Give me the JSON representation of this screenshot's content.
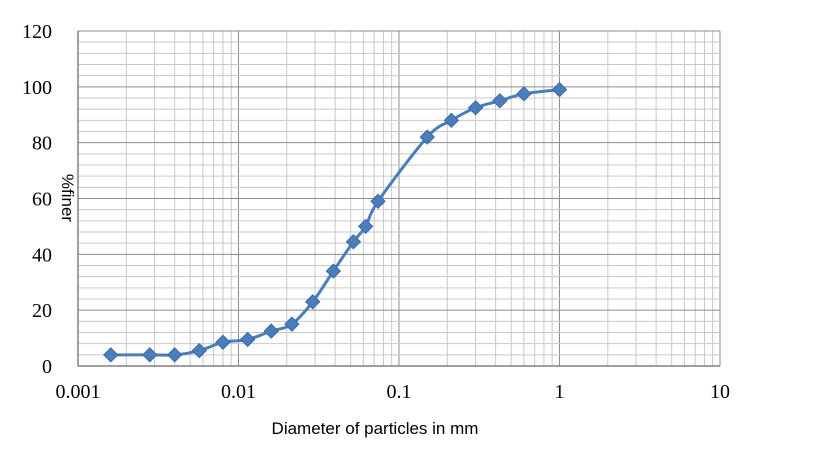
{
  "chart_data": {
    "type": "scatter",
    "title": "",
    "xlabel": "Diameter of particles in mm",
    "ylabel": "%finer",
    "x_scale": "log",
    "xlim": [
      0.001,
      10
    ],
    "ylim": [
      0,
      120
    ],
    "x_ticks": [
      "0.001",
      "0.01",
      "0.1",
      "1",
      "10"
    ],
    "y_ticks": [
      "0",
      "20",
      "40",
      "60",
      "80",
      "100",
      "120"
    ],
    "grid": "on (major and minor, log x)",
    "legend": "none",
    "series_color": "#4a7ebb",
    "series": [
      {
        "marker": "diamond",
        "line": "smooth",
        "points": [
          {
            "x": 0.0016,
            "y": 4
          },
          {
            "x": 0.0028,
            "y": 4
          },
          {
            "x": 0.004,
            "y": 4
          },
          {
            "x": 0.0057,
            "y": 5.5
          },
          {
            "x": 0.008,
            "y": 8.5
          },
          {
            "x": 0.0114,
            "y": 9.5
          },
          {
            "x": 0.016,
            "y": 12.5
          },
          {
            "x": 0.0215,
            "y": 15
          },
          {
            "x": 0.029,
            "y": 23
          },
          {
            "x": 0.039,
            "y": 34
          },
          {
            "x": 0.052,
            "y": 44.5
          },
          {
            "x": 0.062,
            "y": 50
          },
          {
            "x": 0.074,
            "y": 59
          },
          {
            "x": 0.15,
            "y": 82
          },
          {
            "x": 0.212,
            "y": 88
          },
          {
            "x": 0.3,
            "y": 92.5
          },
          {
            "x": 0.425,
            "y": 95
          },
          {
            "x": 0.6,
            "y": 97.5
          },
          {
            "x": 1.0,
            "y": 99
          }
        ]
      }
    ]
  }
}
